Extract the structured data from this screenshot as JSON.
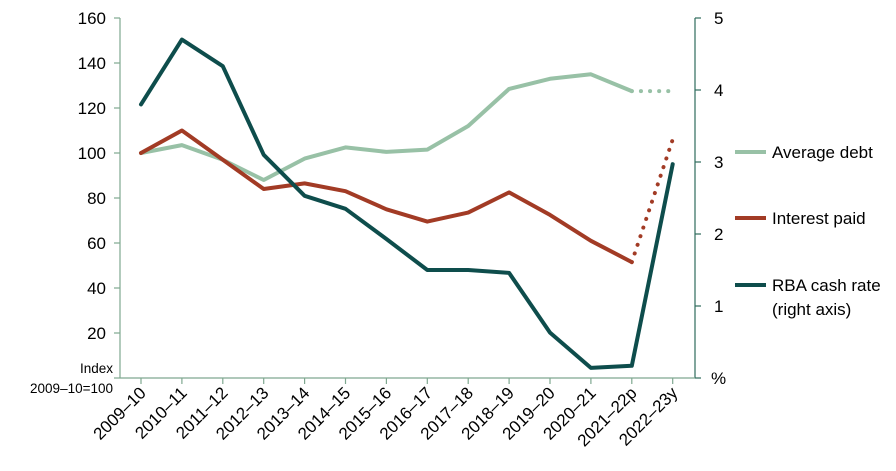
{
  "chart_data": {
    "type": "line",
    "categories": [
      "2009–10",
      "2010–11",
      "2011–12",
      "2012–13",
      "2013–14",
      "2014–15",
      "2015–16",
      "2016–17",
      "2017–18",
      "2018–19",
      "2019–20",
      "2020–21",
      "2021–22p",
      "2022–23y"
    ],
    "left_axis": {
      "ylim": [
        0,
        160
      ],
      "ticks": [
        "20",
        "40",
        "60",
        "80",
        "100",
        "120",
        "140",
        "160"
      ],
      "label_line1": "Index",
      "label_line2": "2009–10=100"
    },
    "right_axis": {
      "ylim": [
        0,
        5
      ],
      "ticks": [
        "1",
        "2",
        "3",
        "4",
        "5"
      ],
      "unit_label": "%"
    },
    "series": [
      {
        "name": "Average debt",
        "axis": "left",
        "color": "#98C1A6",
        "values": [
          100,
          103.5,
          97,
          88,
          97.5,
          102.5,
          100.5,
          101.5,
          112,
          128.5,
          133,
          135,
          127.5,
          null
        ],
        "projection": [
          127.5,
          127.5
        ]
      },
      {
        "name": "Interest paid",
        "axis": "left",
        "color": "#A23B25",
        "values": [
          100,
          110,
          97,
          84,
          86.5,
          83,
          75,
          69.5,
          73.5,
          82.5,
          72.5,
          61,
          51.5,
          null
        ],
        "projection": [
          51.5,
          106
        ]
      },
      {
        "name": "RBA cash rate",
        "name_line2": "(right axis)",
        "axis": "right",
        "color": "#0E4D4C",
        "values": [
          3.8,
          4.7,
          4.33,
          3.1,
          2.53,
          2.35,
          1.93,
          1.5,
          1.5,
          1.46,
          0.63,
          0.14,
          0.17,
          2.97
        ]
      }
    ]
  }
}
